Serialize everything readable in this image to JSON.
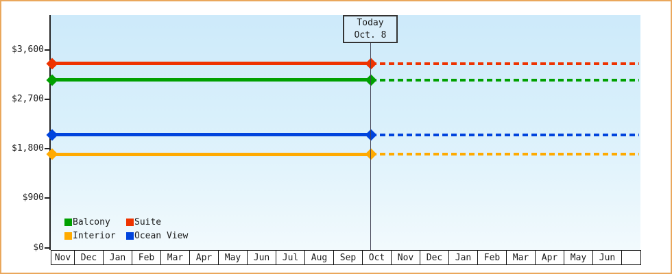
{
  "chart_data": {
    "type": "line",
    "title": "",
    "y_axis": {
      "ticks": [
        {
          "value": 0,
          "label": "$0"
        },
        {
          "value": 900,
          "label": "$900"
        },
        {
          "value": 1800,
          "label": "$1,800"
        },
        {
          "value": 2700,
          "label": "$2,700"
        },
        {
          "value": 3600,
          "label": "$3,600"
        }
      ],
      "range": [
        0,
        4230
      ],
      "grid": false
    },
    "x_axis": {
      "months": [
        "Nov",
        "Dec",
        "Jan",
        "Feb",
        "Mar",
        "Apr",
        "May",
        "Jun",
        "Jul",
        "Aug",
        "Sep",
        "Oct",
        "Nov",
        "Dec",
        "Jan",
        "Feb",
        "Mar",
        "Apr",
        "May",
        "Jun"
      ]
    },
    "today_marker": {
      "line1": "Today",
      "line2": "Oct. 8"
    },
    "series": [
      {
        "name": "Suite",
        "color": "#ee3300",
        "value": 3350,
        "style": "solid-then-dotted"
      },
      {
        "name": "Balcony",
        "color": "#00a000",
        "value": 3050,
        "style": "solid-then-dotted"
      },
      {
        "name": "Ocean View",
        "color": "#0044dd",
        "value": 2050,
        "style": "solid-then-dotted"
      },
      {
        "name": "Interior",
        "color": "#ffaa00",
        "value": 1700,
        "style": "solid-then-dotted"
      }
    ],
    "legend": [
      {
        "label": "Balcony",
        "color": "#00a000"
      },
      {
        "label": "Suite",
        "color": "#ee3300"
      },
      {
        "label": "Interior",
        "color": "#ffaa00"
      },
      {
        "label": "Ocean View",
        "color": "#0044dd"
      }
    ],
    "legend_position": "bottom-left-inside"
  },
  "colors": {
    "frame_border": "#eaa75c",
    "plot_bg_top": "#cdeafa",
    "plot_bg_bottom": "#f2fafd",
    "axis": "#222222",
    "today_line": "#444455",
    "today_box_bg": "#d9eefa"
  }
}
